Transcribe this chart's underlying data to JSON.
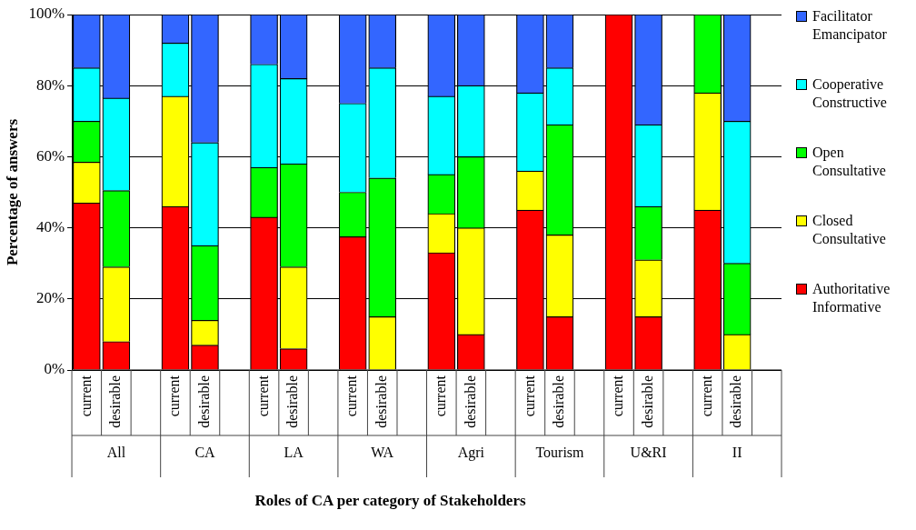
{
  "chart_data": {
    "type": "bar",
    "stacked": true,
    "categories": [
      "current",
      "desirable",
      "current",
      "desirable",
      "current",
      "desirable",
      "current",
      "desirable",
      "current",
      "desirable",
      "current",
      "desirable",
      "current",
      "desirable",
      "current",
      "desirable"
    ],
    "annotations": [
      "All",
      "CA",
      "LA",
      "WA",
      "Agri",
      "Tourism",
      "U&RI",
      "II"
    ],
    "xlabel": "Roles of CA per category of Stakeholders",
    "ylabel": "Percentage of answers",
    "ylim": [
      0,
      100
    ],
    "yticks": [
      {
        "value": 0,
        "label": "0%"
      },
      {
        "value": 20,
        "label": "20%"
      },
      {
        "value": 40,
        "label": "40%"
      },
      {
        "value": 60,
        "label": "60%"
      },
      {
        "value": 80,
        "label": "80%"
      },
      {
        "value": 100,
        "label": "100%"
      }
    ],
    "grid": "y",
    "legend": "right",
    "series": [
      {
        "name": "Authoritative Informative",
        "color": "#ff0000",
        "values": [
          47,
          8,
          46,
          7,
          43,
          6,
          37.5,
          0,
          33,
          10,
          45,
          15,
          100,
          15,
          45,
          0
        ]
      },
      {
        "name": "Closed Consultative",
        "color": "#ffff00",
        "values": [
          11.5,
          21,
          31,
          7,
          0,
          23,
          0,
          15,
          11,
          30,
          11,
          23,
          0,
          16,
          33,
          10
        ]
      },
      {
        "name": "Open Consultative",
        "color": "#00ff00",
        "values": [
          11.5,
          21.5,
          0,
          21,
          14,
          29,
          12.5,
          39,
          11,
          20,
          0,
          31,
          0,
          15,
          22,
          20
        ]
      },
      {
        "name": "Cooperative Constructive",
        "color": "#00ffff",
        "values": [
          15,
          26,
          15,
          29,
          29,
          24,
          25,
          31,
          22,
          20,
          22,
          16,
          0,
          23,
          0,
          40
        ]
      },
      {
        "name": "Facilitator Emancipator",
        "color": "#3366ff",
        "values": [
          15,
          23.5,
          8,
          36,
          14,
          18,
          25,
          15,
          23,
          20,
          22,
          15,
          0,
          31,
          0,
          30
        ]
      }
    ]
  }
}
